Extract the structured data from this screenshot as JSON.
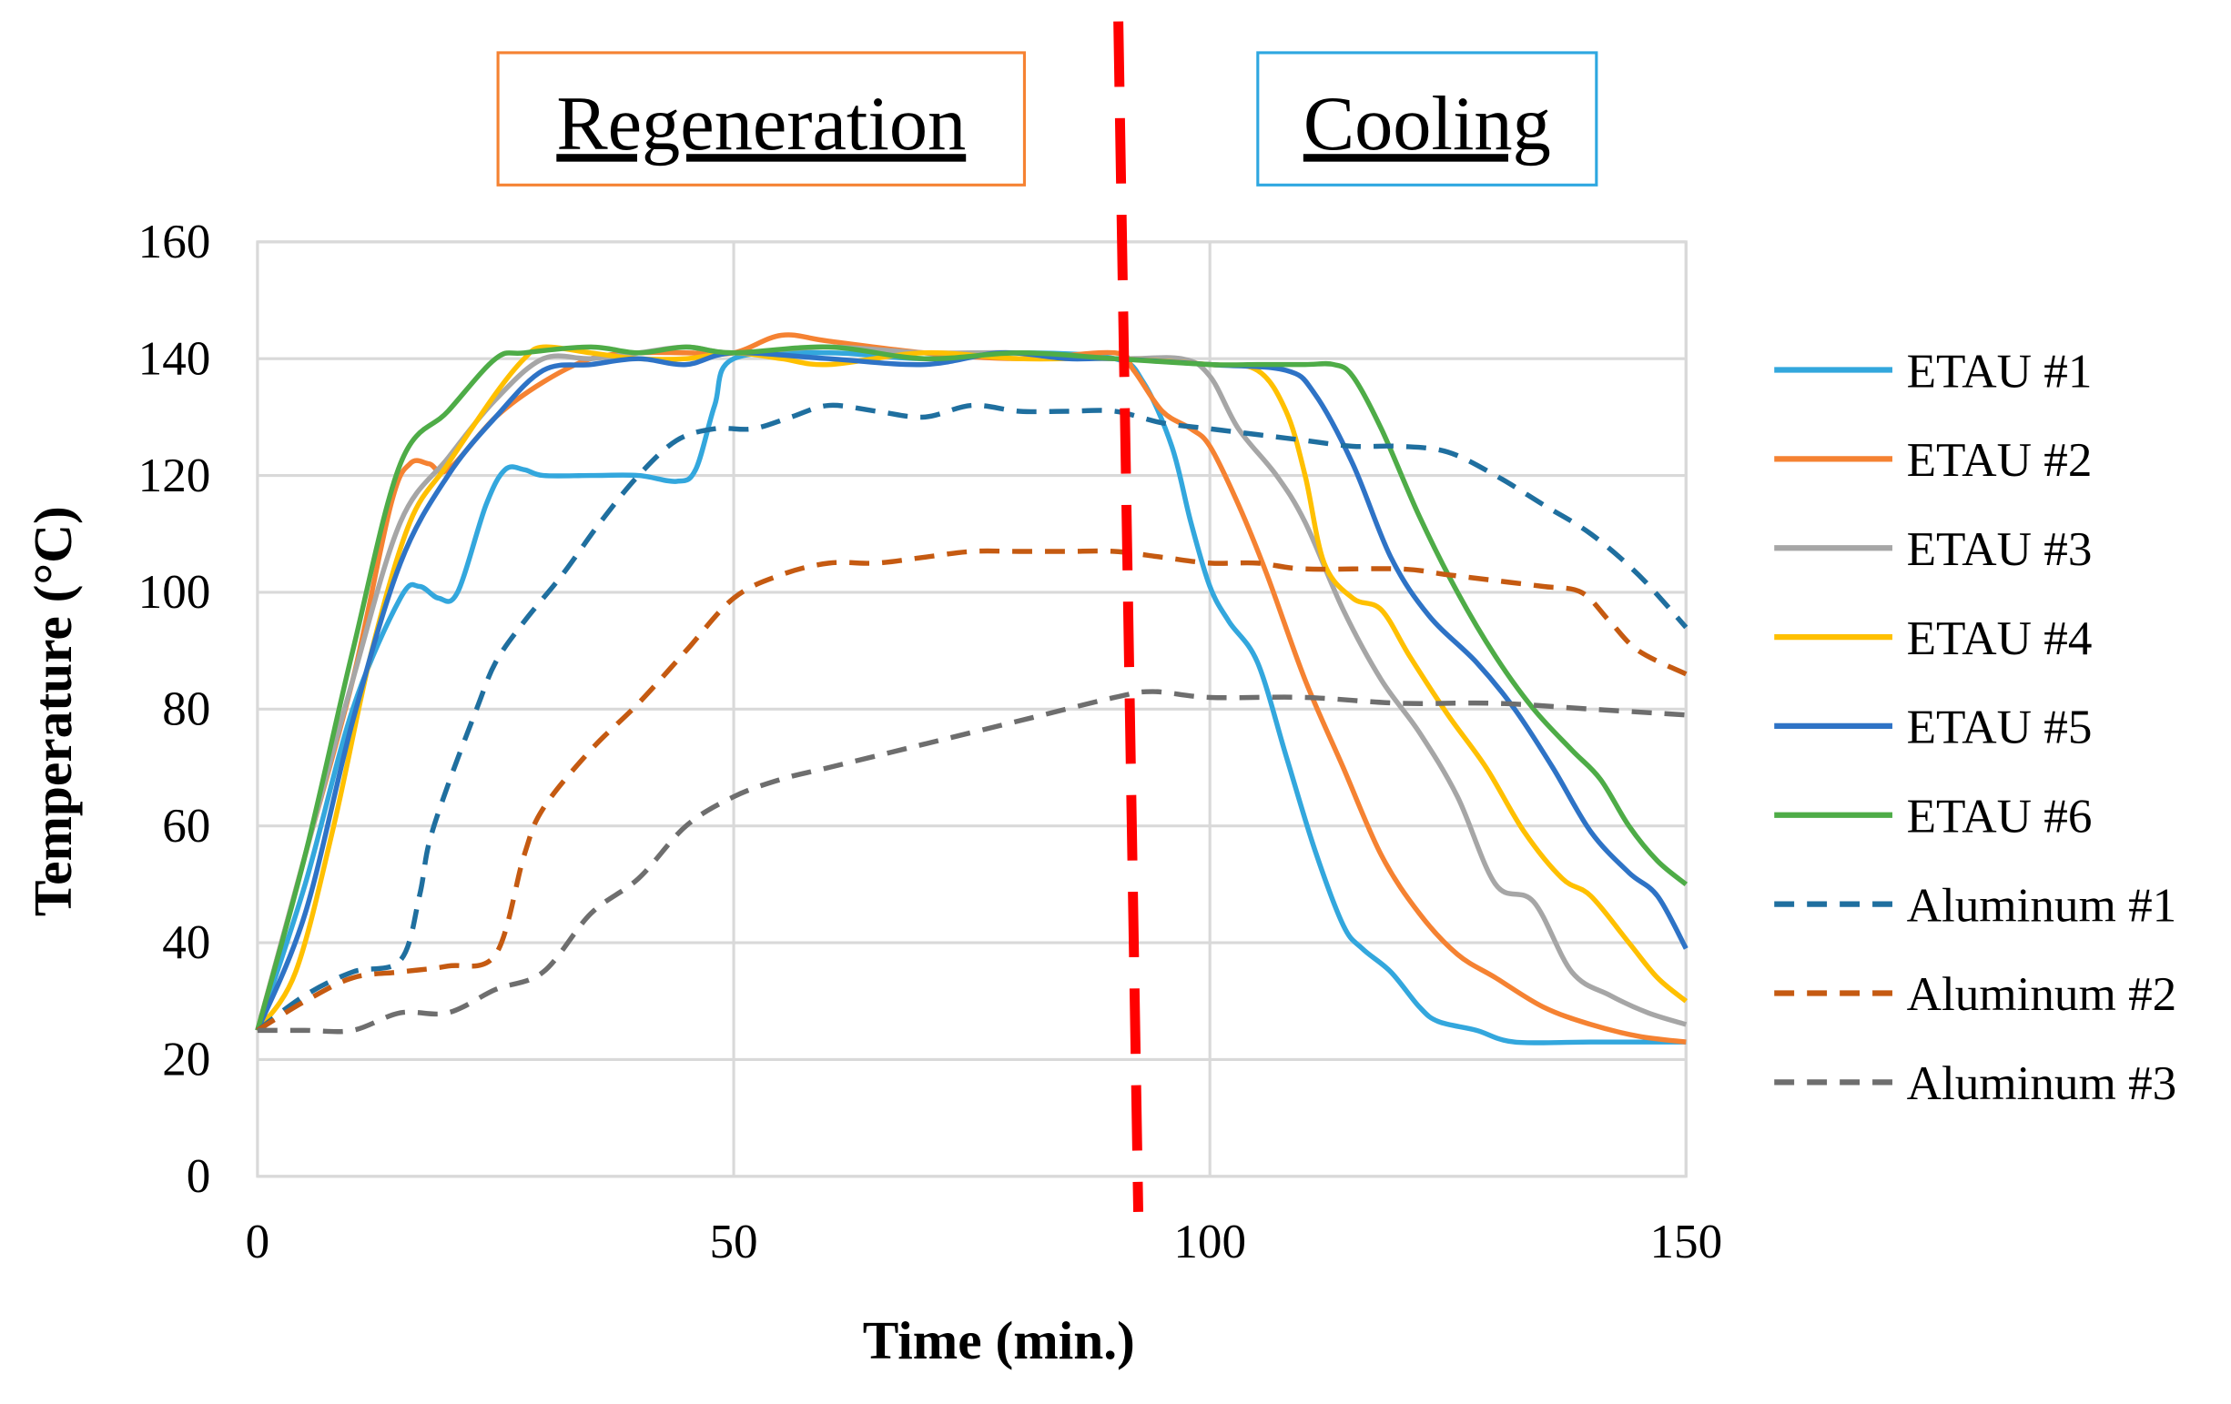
{
  "chart_data": {
    "type": "line",
    "xlabel": "Time (min.)",
    "ylabel": "Temperature  (°C)",
    "xlim": [
      0,
      150
    ],
    "ylim": [
      0,
      160
    ],
    "xticks": [
      "0",
      "50",
      "100",
      "150"
    ],
    "yticks": [
      "0",
      "20",
      "40",
      "60",
      "80",
      "100",
      "120",
      "140",
      "160"
    ],
    "grid": true,
    "legend": "right",
    "annotations": {
      "regeneration": "Regeneration",
      "cooling": "Cooling",
      "divider_time": 92,
      "colors": {
        "regeneration_box": "#f58232",
        "cooling_box": "#2ea7e0",
        "divider": "#ff0000"
      }
    },
    "series": [
      {
        "name": "ETAU #1",
        "color": "#33a7dd",
        "dash": false,
        "points": [
          [
            0,
            25
          ],
          [
            5,
            50
          ],
          [
            10,
            80
          ],
          [
            15,
            99
          ],
          [
            17,
            101
          ],
          [
            19,
            99
          ],
          [
            21,
            100
          ],
          [
            24,
            115
          ],
          [
            26,
            121
          ],
          [
            28,
            121
          ],
          [
            30,
            120
          ],
          [
            35,
            120
          ],
          [
            40,
            120
          ],
          [
            44,
            119
          ],
          [
            46,
            121
          ],
          [
            48,
            132
          ],
          [
            50,
            140
          ],
          [
            60,
            141
          ],
          [
            70,
            140
          ],
          [
            80,
            141
          ],
          [
            90,
            140
          ],
          [
            93,
            136
          ],
          [
            96,
            125
          ],
          [
            98,
            112
          ],
          [
            100,
            101
          ],
          [
            102,
            95
          ],
          [
            105,
            88
          ],
          [
            108,
            72
          ],
          [
            111,
            56
          ],
          [
            114,
            43
          ],
          [
            116,
            39
          ],
          [
            119,
            35
          ],
          [
            122,
            29
          ],
          [
            124,
            26.5
          ],
          [
            128,
            25
          ],
          [
            132,
            23
          ],
          [
            140,
            23
          ],
          [
            150,
            23
          ]
        ]
      },
      {
        "name": "ETAU #2",
        "color": "#f58232",
        "dash": false,
        "points": [
          [
            0,
            25
          ],
          [
            5,
            55
          ],
          [
            10,
            85
          ],
          [
            14,
            115
          ],
          [
            16,
            122
          ],
          [
            18,
            122
          ],
          [
            20,
            121
          ],
          [
            25,
            130
          ],
          [
            30,
            136
          ],
          [
            35,
            140
          ],
          [
            40,
            141
          ],
          [
            45,
            141
          ],
          [
            50,
            141
          ],
          [
            55,
            144
          ],
          [
            60,
            143
          ],
          [
            70,
            141
          ],
          [
            80,
            140
          ],
          [
            90,
            141
          ],
          [
            92,
            138
          ],
          [
            95,
            131
          ],
          [
            98,
            128
          ],
          [
            100,
            125
          ],
          [
            103,
            115
          ],
          [
            106,
            103
          ],
          [
            110,
            85
          ],
          [
            114,
            70
          ],
          [
            118,
            55
          ],
          [
            122,
            45
          ],
          [
            126,
            38
          ],
          [
            130,
            34
          ],
          [
            135,
            29
          ],
          [
            140,
            26
          ],
          [
            145,
            24
          ],
          [
            150,
            23
          ]
        ]
      },
      {
        "name": "ETAU #3",
        "color": "#a6a6a6",
        "dash": false,
        "points": [
          [
            0,
            25
          ],
          [
            5,
            55
          ],
          [
            10,
            85
          ],
          [
            15,
            112
          ],
          [
            20,
            123
          ],
          [
            25,
            133
          ],
          [
            30,
            140
          ],
          [
            35,
            140
          ],
          [
            40,
            141
          ],
          [
            45,
            142
          ],
          [
            50,
            141
          ],
          [
            60,
            142
          ],
          [
            70,
            141
          ],
          [
            80,
            141
          ],
          [
            90,
            140
          ],
          [
            97,
            140
          ],
          [
            100,
            137
          ],
          [
            103,
            128
          ],
          [
            107,
            120
          ],
          [
            110,
            112
          ],
          [
            114,
            97
          ],
          [
            118,
            85
          ],
          [
            122,
            76
          ],
          [
            126,
            65
          ],
          [
            130,
            50
          ],
          [
            134,
            47
          ],
          [
            138,
            35
          ],
          [
            142,
            31
          ],
          [
            146,
            28
          ],
          [
            150,
            26
          ]
        ]
      },
      {
        "name": "ETAU #4",
        "color": "#ffc000",
        "dash": false,
        "points": [
          [
            0,
            25
          ],
          [
            4,
            35
          ],
          [
            8,
            60
          ],
          [
            12,
            90
          ],
          [
            16,
            112
          ],
          [
            20,
            122
          ],
          [
            25,
            134
          ],
          [
            28,
            140
          ],
          [
            30,
            142
          ],
          [
            35,
            141
          ],
          [
            40,
            140
          ],
          [
            45,
            140
          ],
          [
            50,
            141
          ],
          [
            55,
            140
          ],
          [
            60,
            139
          ],
          [
            70,
            141
          ],
          [
            80,
            140
          ],
          [
            90,
            140
          ],
          [
            100,
            139
          ],
          [
            105,
            138
          ],
          [
            108,
            131
          ],
          [
            110,
            120
          ],
          [
            112,
            105
          ],
          [
            115,
            99
          ],
          [
            118,
            97
          ],
          [
            121,
            89
          ],
          [
            125,
            79
          ],
          [
            129,
            70
          ],
          [
            133,
            59
          ],
          [
            137,
            51
          ],
          [
            140,
            48
          ],
          [
            144,
            40
          ],
          [
            147,
            34
          ],
          [
            150,
            30
          ]
        ]
      },
      {
        "name": "ETAU #5",
        "color": "#2e73c6",
        "dash": false,
        "points": [
          [
            0,
            25
          ],
          [
            5,
            45
          ],
          [
            10,
            78
          ],
          [
            15,
            105
          ],
          [
            20,
            120
          ],
          [
            25,
            130
          ],
          [
            30,
            138
          ],
          [
            35,
            139
          ],
          [
            40,
            140
          ],
          [
            45,
            139
          ],
          [
            50,
            141
          ],
          [
            60,
            140
          ],
          [
            70,
            139
          ],
          [
            78,
            141
          ],
          [
            85,
            140
          ],
          [
            90,
            140
          ],
          [
            100,
            139
          ],
          [
            108,
            138
          ],
          [
            111,
            134
          ],
          [
            115,
            122
          ],
          [
            119,
            106
          ],
          [
            123,
            96
          ],
          [
            128,
            88
          ],
          [
            132,
            80
          ],
          [
            136,
            70
          ],
          [
            140,
            59
          ],
          [
            144,
            52
          ],
          [
            147,
            48
          ],
          [
            150,
            39
          ]
        ]
      },
      {
        "name": "ETAU #6",
        "color": "#4eac47",
        "dash": false,
        "points": [
          [
            0,
            25
          ],
          [
            5,
            55
          ],
          [
            10,
            90
          ],
          [
            15,
            122
          ],
          [
            20,
            131
          ],
          [
            25,
            140
          ],
          [
            28,
            141
          ],
          [
            35,
            142
          ],
          [
            40,
            141
          ],
          [
            45,
            142
          ],
          [
            50,
            141
          ],
          [
            60,
            142
          ],
          [
            70,
            140
          ],
          [
            80,
            141
          ],
          [
            90,
            140
          ],
          [
            100,
            139
          ],
          [
            105,
            139
          ],
          [
            110,
            139
          ],
          [
            113,
            139
          ],
          [
            115,
            137
          ],
          [
            118,
            128
          ],
          [
            122,
            113
          ],
          [
            126,
            100
          ],
          [
            130,
            89
          ],
          [
            134,
            80
          ],
          [
            138,
            73
          ],
          [
            141,
            68
          ],
          [
            144,
            60
          ],
          [
            147,
            54
          ],
          [
            150,
            50
          ]
        ]
      },
      {
        "name": "Aluminum #1",
        "color": "#1f6f9f",
        "dash": true,
        "points": [
          [
            0,
            25
          ],
          [
            5,
            31
          ],
          [
            10,
            35
          ],
          [
            15,
            37
          ],
          [
            17,
            48
          ],
          [
            18,
            57
          ],
          [
            20,
            67
          ],
          [
            23,
            80
          ],
          [
            25,
            88
          ],
          [
            28,
            95
          ],
          [
            32,
            103
          ],
          [
            36,
            112
          ],
          [
            40,
            120
          ],
          [
            44,
            126
          ],
          [
            48,
            128
          ],
          [
            52,
            128
          ],
          [
            56,
            130
          ],
          [
            60,
            132
          ],
          [
            65,
            131
          ],
          [
            70,
            130
          ],
          [
            75,
            132
          ],
          [
            80,
            131
          ],
          [
            85,
            131
          ],
          [
            90,
            131
          ],
          [
            95,
            129
          ],
          [
            100,
            128
          ],
          [
            105,
            127
          ],
          [
            110,
            126
          ],
          [
            115,
            125
          ],
          [
            120,
            125
          ],
          [
            125,
            124
          ],
          [
            130,
            120
          ],
          [
            135,
            115
          ],
          [
            140,
            110
          ],
          [
            145,
            103
          ],
          [
            150,
            94
          ]
        ]
      },
      {
        "name": "Aluminum #2",
        "color": "#c55a11",
        "dash": true,
        "points": [
          [
            0,
            25
          ],
          [
            5,
            30
          ],
          [
            10,
            34
          ],
          [
            15,
            35
          ],
          [
            20,
            36
          ],
          [
            25,
            38
          ],
          [
            28,
            55
          ],
          [
            30,
            63
          ],
          [
            35,
            73
          ],
          [
            40,
            81
          ],
          [
            45,
            90
          ],
          [
            50,
            99
          ],
          [
            55,
            103
          ],
          [
            60,
            105
          ],
          [
            65,
            105
          ],
          [
            70,
            106
          ],
          [
            75,
            107
          ],
          [
            80,
            107
          ],
          [
            85,
            107
          ],
          [
            90,
            107
          ],
          [
            95,
            106
          ],
          [
            100,
            105
          ],
          [
            105,
            105
          ],
          [
            110,
            104
          ],
          [
            120,
            104
          ],
          [
            125,
            103
          ],
          [
            130,
            102
          ],
          [
            135,
            101
          ],
          [
            139,
            100
          ],
          [
            142,
            95
          ],
          [
            145,
            90
          ],
          [
            150,
            86
          ]
        ]
      },
      {
        "name": "Aluminum #3",
        "color": "#6e6e6e",
        "dash": true,
        "points": [
          [
            0,
            25
          ],
          [
            5,
            25
          ],
          [
            10,
            25
          ],
          [
            15,
            28
          ],
          [
            20,
            28
          ],
          [
            25,
            32
          ],
          [
            30,
            35
          ],
          [
            35,
            45
          ],
          [
            40,
            51
          ],
          [
            45,
            60
          ],
          [
            50,
            65
          ],
          [
            55,
            68
          ],
          [
            60,
            70
          ],
          [
            70,
            74
          ],
          [
            80,
            78
          ],
          [
            90,
            82
          ],
          [
            94,
            83
          ],
          [
            100,
            82
          ],
          [
            110,
            82
          ],
          [
            120,
            81
          ],
          [
            130,
            81
          ],
          [
            140,
            80
          ],
          [
            150,
            79
          ]
        ]
      }
    ]
  }
}
